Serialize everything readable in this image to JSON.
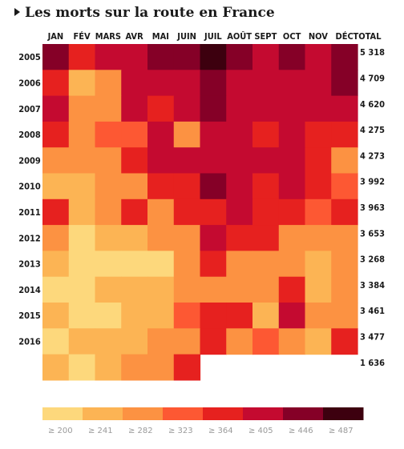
{
  "chart_data": {
    "type": "heatmap",
    "title": "Les morts sur la route en France",
    "months": [
      "JAN",
      "FÉV",
      "MARS",
      "AVR",
      "MAI",
      "JUIN",
      "JUIL",
      "AOÛT",
      "SEPT",
      "OCT",
      "NOV",
      "DÉC"
    ],
    "total_label": "TOTAL",
    "years": [
      "2005",
      "2006",
      "2007",
      "2008",
      "2009",
      "2010",
      "2011",
      "2012",
      "2013",
      "2014",
      "2015",
      "2016",
      ""
    ],
    "totals": [
      "5 318",
      "4 709",
      "4 620",
      "4 275",
      "4 273",
      "3 992",
      "3 963",
      "3 653",
      "3 268",
      "3 384",
      "3 461",
      "3 477",
      "1 636"
    ],
    "buckets": [
      [
        6,
        4,
        5,
        5,
        6,
        6,
        7,
        6,
        5,
        6,
        5,
        6
      ],
      [
        4,
        1,
        2,
        5,
        5,
        5,
        6,
        5,
        5,
        5,
        5,
        6
      ],
      [
        5,
        2,
        2,
        5,
        4,
        5,
        6,
        5,
        5,
        5,
        5,
        5
      ],
      [
        4,
        2,
        3,
        3,
        5,
        2,
        5,
        5,
        4,
        5,
        4,
        4
      ],
      [
        2,
        2,
        2,
        4,
        5,
        5,
        5,
        5,
        5,
        5,
        4,
        2
      ],
      [
        1,
        1,
        2,
        2,
        4,
        4,
        6,
        5,
        4,
        5,
        4,
        3
      ],
      [
        4,
        1,
        2,
        4,
        2,
        4,
        4,
        5,
        4,
        4,
        3,
        4
      ],
      [
        2,
        0,
        1,
        1,
        2,
        2,
        5,
        4,
        4,
        2,
        2,
        2
      ],
      [
        1,
        0,
        0,
        0,
        0,
        2,
        4,
        2,
        2,
        2,
        1,
        2
      ],
      [
        0,
        0,
        1,
        1,
        1,
        2,
        2,
        2,
        2,
        4,
        1,
        2
      ],
      [
        1,
        0,
        0,
        1,
        1,
        3,
        4,
        4,
        1,
        5,
        2,
        2
      ],
      [
        0,
        1,
        1,
        1,
        2,
        2,
        4,
        2,
        3,
        2,
        1,
        4
      ],
      [
        1,
        0,
        1,
        2,
        2,
        4,
        null,
        null,
        null,
        null,
        null,
        null
      ]
    ],
    "legend": {
      "colors": [
        "#fdd87c",
        "#fcb454",
        "#fc9242",
        "#fd5833",
        "#e6211f",
        "#c40a30",
        "#850027",
        "#3d000f"
      ],
      "labels": [
        "≥ 200",
        "≥ 241",
        "≥ 282",
        "≥ 323",
        "≥ 364",
        "≥ 405",
        "≥ 446",
        "≥ 487"
      ]
    }
  }
}
